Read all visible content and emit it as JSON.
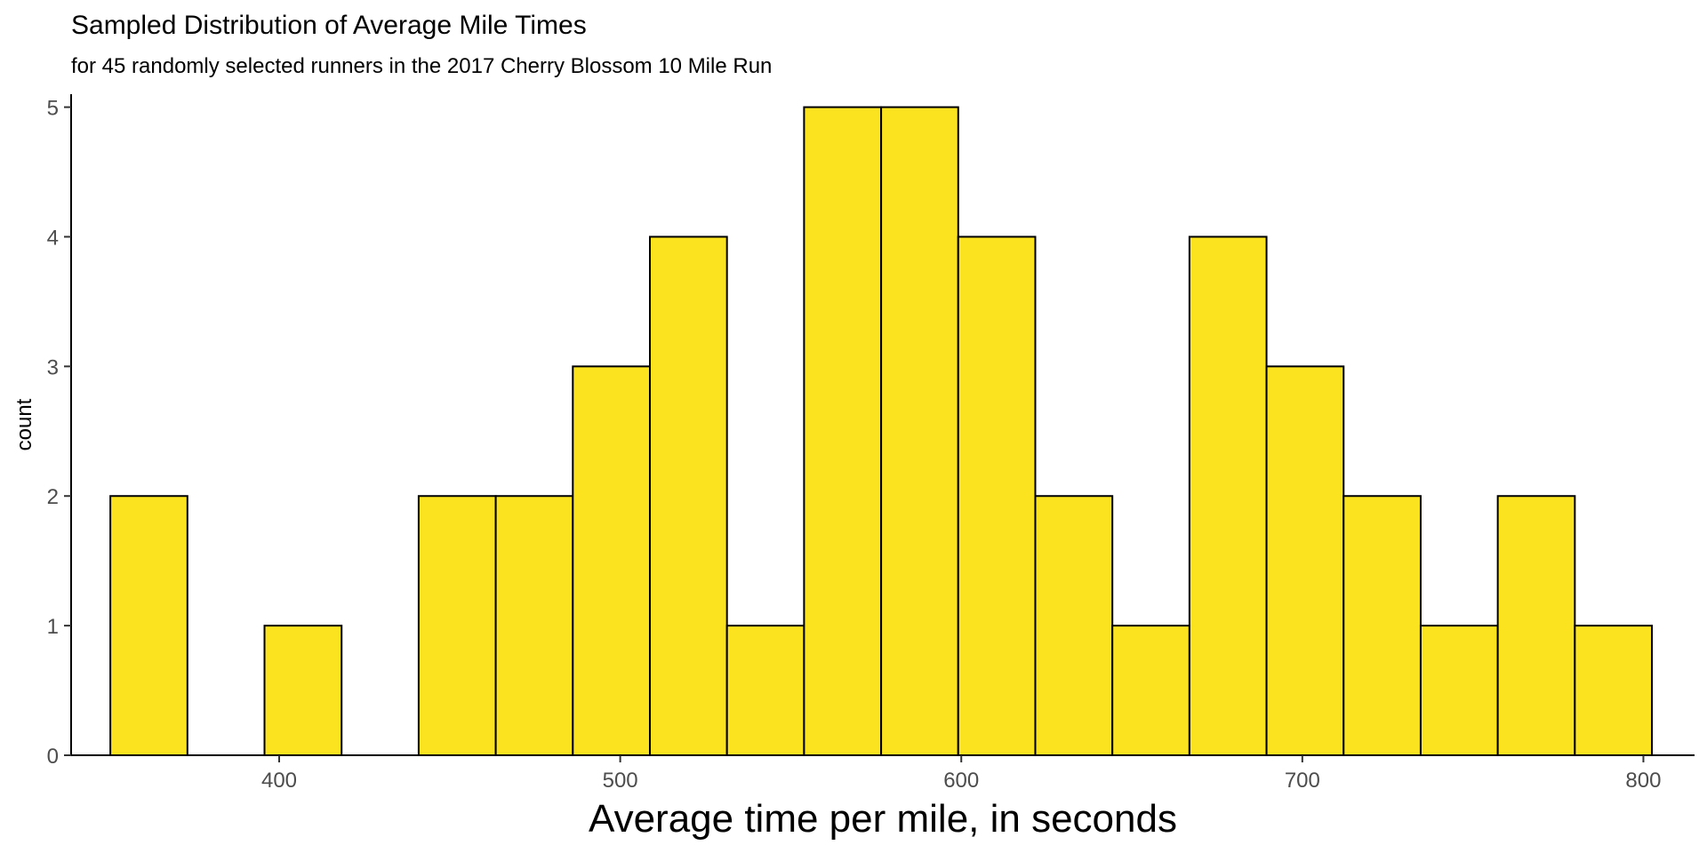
{
  "chart_data": {
    "type": "bar",
    "title": "Sampled Distribution of Average Mile Times",
    "subtitle": "for 45 randomly selected runners in the 2017 Cherry Blossom 10 Mile Run",
    "xlabel": "Average time per mile, in seconds",
    "ylabel": "count",
    "xlim": [
      339,
      815
    ],
    "ylim": [
      0,
      5.1
    ],
    "x_ticks": [
      400,
      500,
      600,
      700,
      800
    ],
    "y_ticks": [
      0,
      1,
      2,
      3,
      4,
      5
    ],
    "bins": [
      {
        "x0": 350.5,
        "x1": 373.1,
        "count": 2
      },
      {
        "x0": 373.1,
        "x1": 395.7,
        "count": 0
      },
      {
        "x0": 395.7,
        "x1": 418.3,
        "count": 1
      },
      {
        "x0": 418.3,
        "x1": 440.9,
        "count": 0
      },
      {
        "x0": 440.9,
        "x1": 463.5,
        "count": 2
      },
      {
        "x0": 463.5,
        "x1": 486.1,
        "count": 2
      },
      {
        "x0": 486.1,
        "x1": 508.7,
        "count": 3
      },
      {
        "x0": 508.7,
        "x1": 531.3,
        "count": 4
      },
      {
        "x0": 531.3,
        "x1": 553.9,
        "count": 1
      },
      {
        "x0": 553.9,
        "x1": 576.5,
        "count": 5
      },
      {
        "x0": 576.5,
        "x1": 599.1,
        "count": 5
      },
      {
        "x0": 599.1,
        "x1": 621.7,
        "count": 4
      },
      {
        "x0": 621.7,
        "x1": 644.3,
        "count": 2
      },
      {
        "x0": 644.3,
        "x1": 666.9,
        "count": 1
      },
      {
        "x0": 666.9,
        "x1": 689.5,
        "count": 4
      },
      {
        "x0": 689.5,
        "x1": 712.1,
        "count": 3
      },
      {
        "x0": 712.1,
        "x1": 734.7,
        "count": 2
      },
      {
        "x0": 734.7,
        "x1": 757.3,
        "count": 1
      },
      {
        "x0": 757.3,
        "x1": 779.9,
        "count": 2
      },
      {
        "x0": 779.9,
        "x1": 802.5,
        "count": 1
      }
    ],
    "fill_color": "#fbe31f",
    "stroke_color": "#000000",
    "grid": false,
    "legend": "none"
  }
}
